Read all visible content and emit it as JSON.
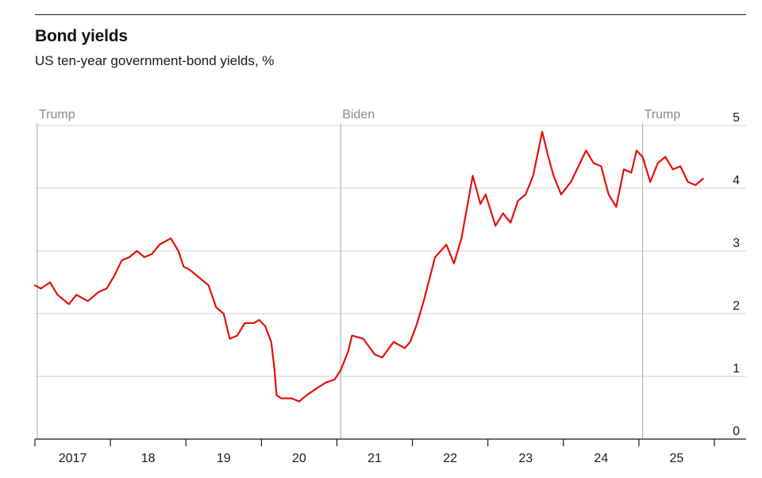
{
  "header": {
    "title": "Bond yields",
    "subtitle": "US ten-year government-bond yields, %"
  },
  "colors": {
    "line": "#e3120b",
    "grid": "#d2d2d2",
    "marker": "#a8a8a8",
    "axis": "#1a1a1a"
  },
  "chart_data": {
    "type": "line",
    "title": "Bond yields",
    "subtitle": "US ten-year government-bond yields, %",
    "xlabel": "",
    "ylabel": "",
    "ylim": [
      0,
      5
    ],
    "xlim": [
      2017.0,
      2026.0
    ],
    "y_axis_side": "right",
    "y_ticks": [
      "0",
      "1",
      "2",
      "3",
      "4",
      "5"
    ],
    "x_ticks": [
      "2017",
      "18",
      "19",
      "20",
      "21",
      "22",
      "23",
      "24",
      "25"
    ],
    "grid": true,
    "annotations": [
      {
        "label": "Trump",
        "x": 2017.05
      },
      {
        "label": "Biden",
        "x": 2021.05
      },
      {
        "label": "Trump",
        "x": 2025.05
      }
    ],
    "series": [
      {
        "x": [
          2017.0,
          2017.08,
          2017.2,
          2017.3,
          2017.45,
          2017.55,
          2017.7,
          2017.85,
          2017.95,
          2018.05,
          2018.15,
          2018.25,
          2018.35,
          2018.45,
          2018.55,
          2018.65,
          2018.8,
          2018.9,
          2018.97,
          2019.05,
          2019.2,
          2019.3,
          2019.4,
          2019.5,
          2019.58,
          2019.68,
          2019.78,
          2019.9,
          2019.97,
          2020.05,
          2020.13,
          2020.17,
          2020.2,
          2020.26,
          2020.4,
          2020.5,
          2020.6,
          2020.72,
          2020.85,
          2020.97,
          2021.05,
          2021.15,
          2021.2,
          2021.35,
          2021.5,
          2021.6,
          2021.75,
          2021.9,
          2021.97,
          2022.05,
          2022.15,
          2022.3,
          2022.45,
          2022.55,
          2022.65,
          2022.8,
          2022.9,
          2022.97,
          2023.1,
          2023.2,
          2023.3,
          2023.4,
          2023.5,
          2023.6,
          2023.72,
          2023.8,
          2023.87,
          2023.97,
          2024.1,
          2024.22,
          2024.3,
          2024.4,
          2024.5,
          2024.6,
          2024.7,
          2024.8,
          2024.9,
          2024.97,
          2025.05,
          2025.15,
          2025.25,
          2025.35,
          2025.45,
          2025.55,
          2025.65,
          2025.75,
          2025.85
        ],
        "values": [
          2.45,
          2.4,
          2.5,
          2.3,
          2.15,
          2.3,
          2.2,
          2.35,
          2.4,
          2.6,
          2.85,
          2.9,
          3.0,
          2.9,
          2.95,
          3.1,
          3.2,
          3.0,
          2.75,
          2.7,
          2.55,
          2.45,
          2.1,
          2.0,
          1.6,
          1.65,
          1.85,
          1.85,
          1.9,
          1.8,
          1.55,
          1.15,
          0.7,
          0.65,
          0.65,
          0.6,
          0.7,
          0.8,
          0.9,
          0.95,
          1.1,
          1.4,
          1.65,
          1.6,
          1.35,
          1.3,
          1.55,
          1.45,
          1.55,
          1.8,
          2.2,
          2.9,
          3.1,
          2.8,
          3.2,
          4.2,
          3.75,
          3.9,
          3.4,
          3.6,
          3.45,
          3.8,
          3.9,
          4.2,
          4.9,
          4.5,
          4.2,
          3.9,
          4.1,
          4.4,
          4.6,
          4.4,
          4.35,
          3.9,
          3.7,
          4.3,
          4.25,
          4.6,
          4.5,
          4.1,
          4.4,
          4.5,
          4.3,
          4.35,
          4.1,
          4.05,
          4.15
        ]
      }
    ]
  }
}
